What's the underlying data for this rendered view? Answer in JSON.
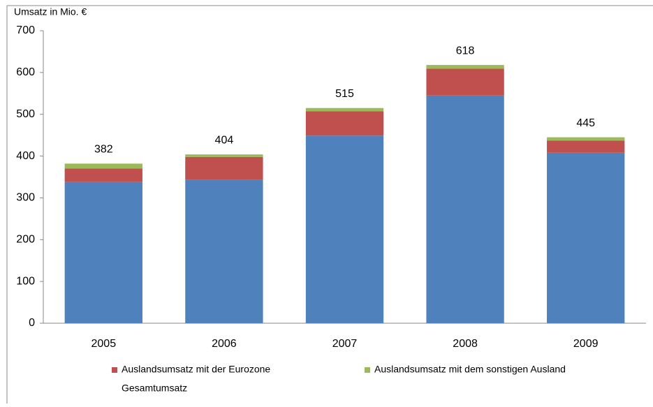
{
  "chart_data": {
    "type": "stacked-bar",
    "y_label": "Umsatz in Mio. €",
    "categories": [
      "2005",
      "2006",
      "2007",
      "2008",
      "2009"
    ],
    "series": [
      {
        "color": "#4f81bd",
        "values": [
          338,
          343,
          449,
          545,
          408
        ]
      },
      {
        "name": "Auslandsumsatz mit der Eurozone",
        "color": "#c0504d",
        "values": [
          32,
          55,
          58,
          64,
          29
        ]
      },
      {
        "name": "Auslandsumsatz mit dem sonstigen Ausland",
        "color": "#9bbb59",
        "values": [
          12,
          6,
          8,
          9,
          8
        ]
      }
    ],
    "totals": {
      "name": "Gesamtumsatz",
      "values": [
        382,
        404,
        515,
        618,
        445
      ]
    },
    "ylim": [
      0,
      700
    ],
    "yticks": [
      0,
      100,
      200,
      300,
      400,
      500,
      600,
      700
    ],
    "grid": false
  }
}
